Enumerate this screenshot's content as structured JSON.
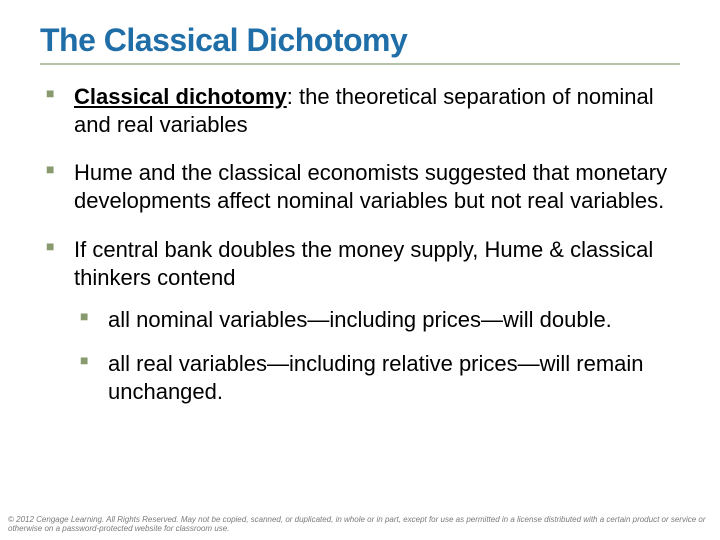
{
  "colors": {
    "title": "#1f6ea8",
    "underline": "#b7c3a8",
    "bullet_marker": "#889a6e",
    "body_text": "#000000",
    "footer_text": "#7a7a7a",
    "background": "#ffffff"
  },
  "typography": {
    "title_fontsize": 32,
    "body_fontsize": 22,
    "footer_fontsize": 8,
    "font_family": "Arial"
  },
  "title": "The Classical Dichotomy",
  "bullets": [
    {
      "term": "Classical dichotomy",
      "term_suffix": ":",
      "text_after": "  the theoretical separation of nominal and real variables"
    },
    {
      "text": "Hume and the classical economists suggested that monetary developments affect nominal variables but not real variables."
    },
    {
      "text": "If central bank doubles the money supply, Hume & classical thinkers contend",
      "sub": [
        "all nominal variables—including prices—will double.",
        "all real variables—including relative prices—will remain unchanged."
      ]
    }
  ],
  "footer": "© 2012 Cengage Learning. All Rights Reserved. May not be copied, scanned, or duplicated, in whole or in part, except for use as permitted in a license distributed with a certain product or service or otherwise on a password-protected website for classroom use."
}
